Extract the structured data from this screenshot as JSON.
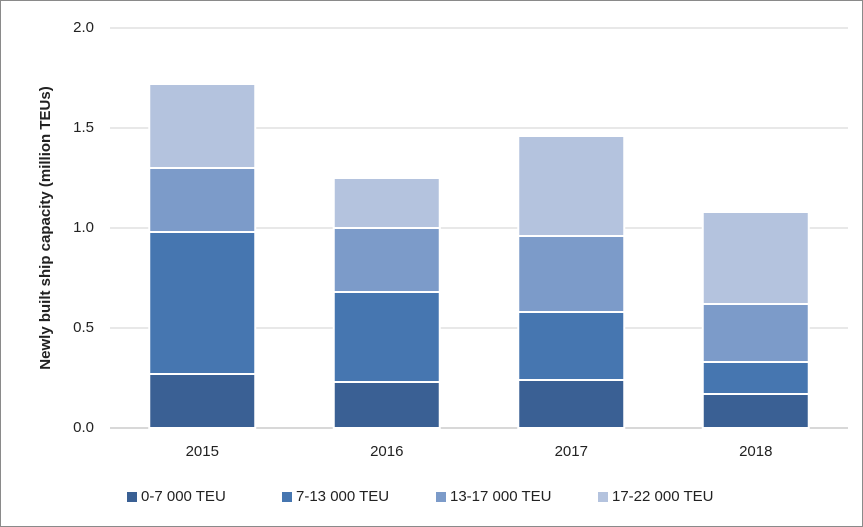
{
  "chart_data": {
    "type": "stacked_bar",
    "y_label": "Newly built ship capacity (million TEUs)",
    "categories": [
      "2015",
      "2016",
      "2017",
      "2018"
    ],
    "series": [
      {
        "name": "0-7 000 TEU",
        "color": "#3a6094",
        "values": [
          0.27,
          0.23,
          0.24,
          0.17
        ]
      },
      {
        "name": "7-13 000 TEU",
        "color": "#4676b0",
        "values": [
          0.71,
          0.45,
          0.34,
          0.16
        ]
      },
      {
        "name": "13-17 000 TEU",
        "color": "#7c9bc9",
        "values": [
          0.32,
          0.32,
          0.38,
          0.29
        ]
      },
      {
        "name": "17-22 000 TEU",
        "color": "#b4c3de",
        "values": [
          0.42,
          0.25,
          0.5,
          0.46
        ]
      }
    ],
    "ylim": [
      0,
      2
    ],
    "yticks": [
      {
        "value": 0,
        "label": "0.0"
      },
      0.5,
      {
        "value": 1,
        "label": "1.0"
      },
      1.5,
      {
        "value": 2,
        "label": "2.0"
      }
    ],
    "grid": true,
    "legend": "bottom"
  }
}
